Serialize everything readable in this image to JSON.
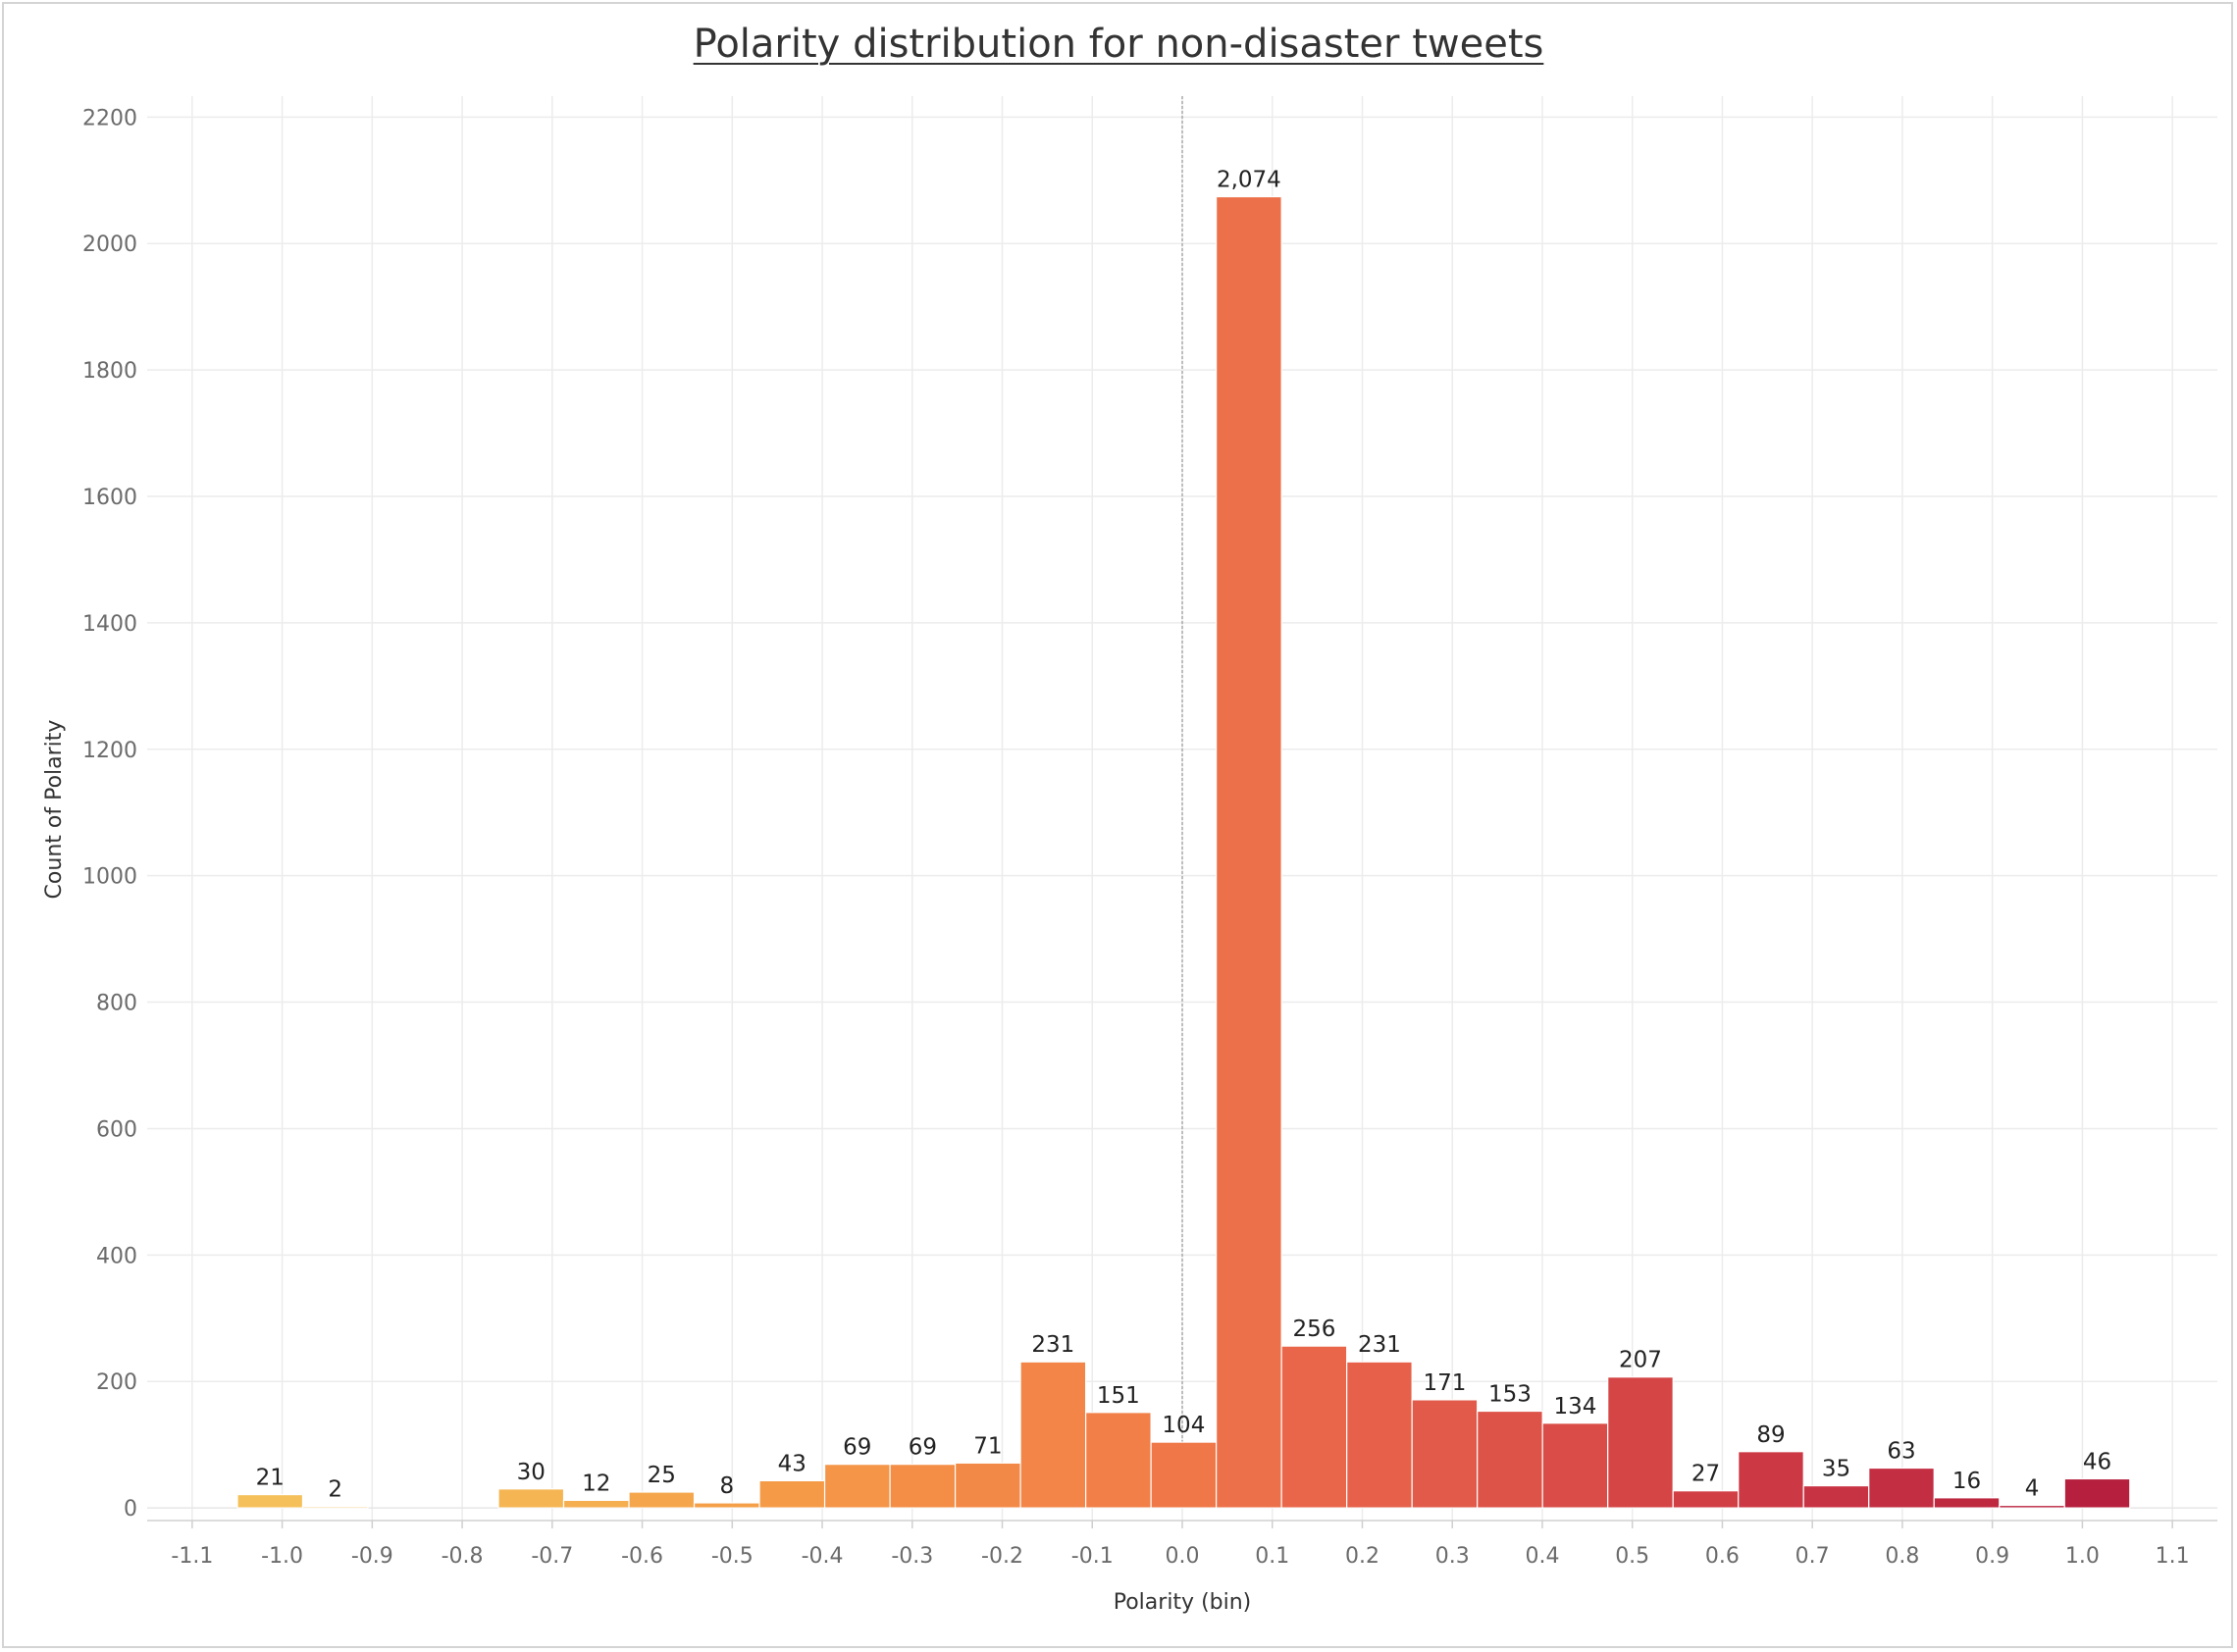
{
  "chart_data": {
    "type": "bar",
    "title": "Polarity distribution for non-disaster tweets",
    "xlabel": "Polarity (bin)",
    "ylabel": "Count of Polarity",
    "xlim": [
      -1.15,
      1.15
    ],
    "ylim": [
      -20,
      2230
    ],
    "grid": true,
    "bin_width": 0.0725,
    "xticks": [
      "-1.1",
      "-1.0",
      "-0.9",
      "-0.8",
      "-0.7",
      "-0.6",
      "-0.5",
      "-0.4",
      "-0.3",
      "-0.2",
      "-0.1",
      "0.0",
      "0.1",
      "0.2",
      "0.3",
      "0.4",
      "0.5",
      "0.6",
      "0.7",
      "0.8",
      "0.9",
      "1.0",
      "1.1"
    ],
    "yticks": [
      "0",
      "200",
      "400",
      "600",
      "800",
      "1000",
      "1200",
      "1400",
      "1600",
      "1800",
      "2000",
      "2200"
    ],
    "bins": [
      {
        "x": -1.0135,
        "value": 21,
        "label": "21",
        "color": "#f5c05a"
      },
      {
        "x": -0.941,
        "value": 2,
        "label": "2",
        "color": "#f5bd58"
      },
      {
        "x": -0.7235,
        "value": 30,
        "label": "30",
        "color": "#f5b553"
      },
      {
        "x": -0.651,
        "value": 12,
        "label": "12",
        "color": "#f5ae50"
      },
      {
        "x": -0.5785,
        "value": 25,
        "label": "25",
        "color": "#f5a64c"
      },
      {
        "x": -0.506,
        "value": 8,
        "label": "8",
        "color": "#f5a049"
      },
      {
        "x": -0.4335,
        "value": 43,
        "label": "43",
        "color": "#f59b48"
      },
      {
        "x": -0.361,
        "value": 69,
        "label": "69",
        "color": "#f59547"
      },
      {
        "x": -0.2885,
        "value": 69,
        "label": "69",
        "color": "#f48e46"
      },
      {
        "x": -0.216,
        "value": 71,
        "label": "71",
        "color": "#f38946"
      },
      {
        "x": -0.1435,
        "value": 231,
        "label": "231",
        "color": "#f28547"
      },
      {
        "x": -0.071,
        "value": 151,
        "label": "151",
        "color": "#f17f47"
      },
      {
        "x": 0.0015,
        "value": 104,
        "label": "104",
        "color": "#ef7748"
      },
      {
        "x": 0.074,
        "value": 2074,
        "label": "2,074",
        "color": "#ec7049"
      },
      {
        "x": 0.1465,
        "value": 256,
        "label": "256",
        "color": "#e9664a"
      },
      {
        "x": 0.219,
        "value": 231,
        "label": "231",
        "color": "#e6604a"
      },
      {
        "x": 0.2915,
        "value": 171,
        "label": "171",
        "color": "#e25a4a"
      },
      {
        "x": 0.364,
        "value": 153,
        "label": "153",
        "color": "#dd5348"
      },
      {
        "x": 0.4365,
        "value": 134,
        "label": "134",
        "color": "#d94c47"
      },
      {
        "x": 0.509,
        "value": 207,
        "label": "207",
        "color": "#d54546"
      },
      {
        "x": 0.5815,
        "value": 27,
        "label": "27",
        "color": "#d13f45"
      },
      {
        "x": 0.654,
        "value": 89,
        "label": "89",
        "color": "#cc3944"
      },
      {
        "x": 0.7265,
        "value": 35,
        "label": "35",
        "color": "#c83343"
      },
      {
        "x": 0.799,
        "value": 63,
        "label": "63",
        "color": "#c32e42"
      },
      {
        "x": 0.8715,
        "value": 16,
        "label": "16",
        "color": "#be2940"
      },
      {
        "x": 0.944,
        "value": 4,
        "label": "4",
        "color": "#ba233f"
      },
      {
        "x": 1.0165,
        "value": 46,
        "label": "46",
        "color": "#b61f3d"
      }
    ],
    "colors": {
      "grid": "#ececec",
      "reference_line": "#9a9a9a",
      "bar_outline": "#ffffff"
    }
  }
}
